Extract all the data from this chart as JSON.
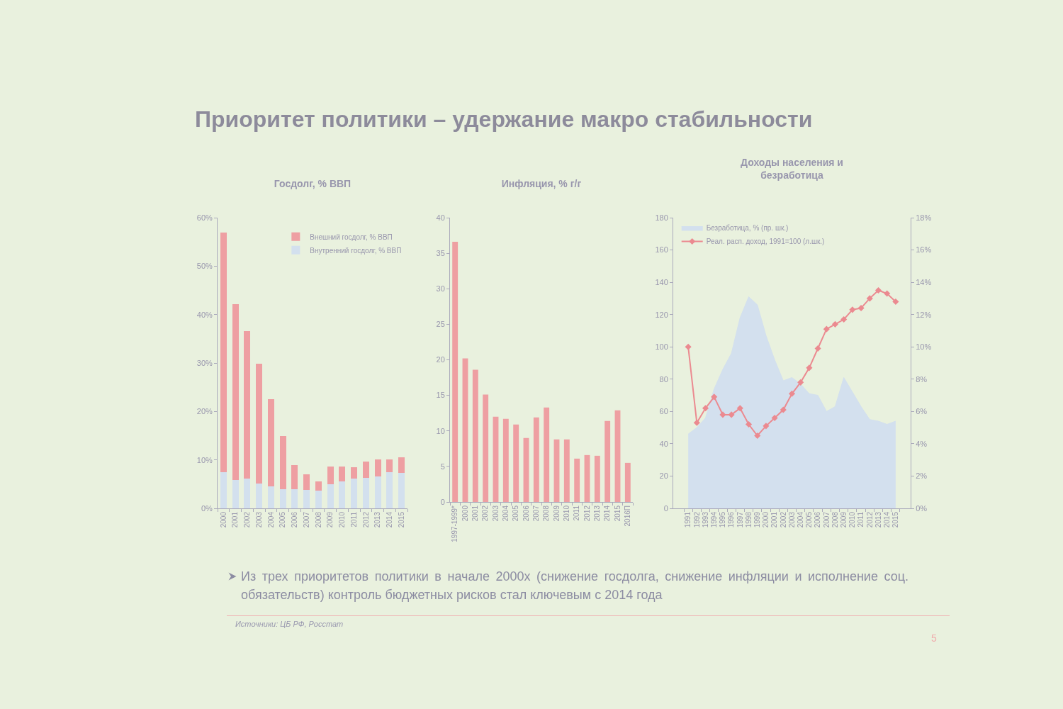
{
  "chart_data": [
    {
      "type": "bar",
      "title": "Госдолг, % ВВП",
      "categories": [
        "2000",
        "2001",
        "2002",
        "2003",
        "2004",
        "2005",
        "2006",
        "2007",
        "2008",
        "2009",
        "2010",
        "2011",
        "2012",
        "2013",
        "2014",
        "2015"
      ],
      "stacked": true,
      "series": [
        {
          "name": "Внутренний госдолг, % ВВП",
          "color": "#d3e0ee",
          "values": [
            7.4,
            5.8,
            6.1,
            5.1,
            4.6,
            4.0,
            4.0,
            3.8,
            3.7,
            5.0,
            5.6,
            6.2,
            6.3,
            6.6,
            7.4,
            7.3
          ]
        },
        {
          "name": "Внешний госдолг, % ВВП",
          "color": "#ee9fa2",
          "values": [
            49.6,
            36.4,
            30.5,
            24.8,
            18.0,
            10.9,
            4.9,
            3.2,
            1.8,
            3.7,
            3.0,
            2.3,
            3.4,
            3.5,
            2.7,
            3.3
          ]
        }
      ],
      "ylim": [
        0,
        60
      ],
      "yticks": [
        {
          "value": 0,
          "label": "0%"
        },
        {
          "value": 10,
          "label": "10%"
        },
        {
          "value": 20,
          "label": "20%"
        },
        {
          "value": 30,
          "label": "30%"
        },
        {
          "value": 40,
          "label": "40%"
        },
        {
          "value": 50,
          "label": "50%"
        },
        {
          "value": 60,
          "label": "60%"
        }
      ],
      "legend": "top right",
      "annotations": [
        "Приоритет политики – удержание макро стабильности",
        "Из трех приоритетов политики в начале 2000х (снижение госдолга, снижение инфляции и исполнение соц. обязательств)  контроль бюджетных рисков стал ключевым с 2014 года",
        "Источники: ЦБ РФ, Росстат",
        "5"
      ]
    },
    {
      "type": "bar",
      "title": "Инфляция, % г/г",
      "categories": [
        "1997-1999*",
        "2000",
        "2001",
        "2002",
        "2003",
        "2004",
        "2005",
        "2006",
        "2007",
        "2008",
        "2009",
        "2010",
        "2011",
        "2012",
        "2013",
        "2014",
        "2015",
        "2016П"
      ],
      "values": [
        36.6,
        20.2,
        18.6,
        15.1,
        12.0,
        11.7,
        10.9,
        9.0,
        11.9,
        13.3,
        8.8,
        8.8,
        6.1,
        6.6,
        6.5,
        11.4,
        12.9,
        5.5
      ],
      "color": "#ee9fa2",
      "ylim": [
        0,
        40
      ],
      "yticks": [
        0,
        5,
        10,
        15,
        20,
        25,
        30,
        35,
        40
      ]
    },
    {
      "type": "line",
      "title": "Доходы населения и безработица",
      "categories": [
        "1991",
        "1992",
        "1993",
        "1994",
        "1995",
        "1996",
        "1997",
        "1998",
        "1999",
        "2000",
        "2001",
        "2002",
        "2003",
        "2004",
        "2005",
        "2006",
        "2007",
        "2008",
        "2009",
        "2010",
        "2011",
        "2012",
        "2013",
        "2014",
        "2015"
      ],
      "series": [
        {
          "name": "Безработица, % (пр. шк.)",
          "type": "area",
          "axis": "y2",
          "color": "#d3e0ee",
          "values": [
            4.6,
            5.0,
            5.6,
            7.4,
            8.6,
            9.6,
            11.8,
            13.1,
            12.6,
            10.7,
            9.2,
            7.9,
            8.1,
            7.7,
            7.1,
            7.0,
            6.0,
            6.3,
            8.1,
            7.2,
            6.3,
            5.5,
            5.4,
            5.2,
            5.4
          ]
        },
        {
          "name": "Реал. расп. доход, 1991=100 (л.шк.)",
          "color": "#eb8a90",
          "marker": "diamond",
          "values": [
            100,
            53,
            62,
            69,
            58,
            58,
            62,
            52,
            45,
            51,
            56,
            61,
            71,
            78,
            87,
            99,
            111,
            114,
            117,
            123,
            124,
            130,
            135,
            133,
            128
          ]
        }
      ],
      "ylim": [
        0,
        180
      ],
      "yticks": [
        0,
        20,
        40,
        60,
        80,
        100,
        120,
        140,
        160,
        180
      ],
      "y2lim": [
        0,
        18
      ],
      "y2ticks": [
        {
          "value": 0,
          "label": "0%"
        },
        {
          "value": 2,
          "label": "2%"
        },
        {
          "value": 4,
          "label": "4%"
        },
        {
          "value": 6,
          "label": "6%"
        },
        {
          "value": 8,
          "label": "8%"
        },
        {
          "value": 10,
          "label": "10%"
        },
        {
          "value": 12,
          "label": "12%"
        },
        {
          "value": 14,
          "label": "14%"
        },
        {
          "value": 16,
          "label": "16%"
        },
        {
          "value": 18,
          "label": "18%"
        }
      ],
      "line_style": "solid",
      "legend": "top left"
    }
  ]
}
